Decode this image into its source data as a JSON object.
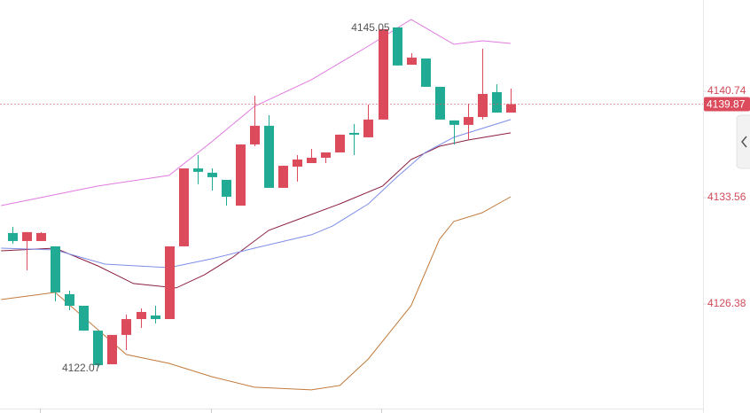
{
  "chart_data": {
    "type": "candlestick",
    "up_color": "#dc4b5c",
    "down_color": "#22ab94",
    "ylim": [
      4119.02,
      4146.9
    ],
    "yticks": [
      4126.38,
      4133.56,
      4140.74
    ],
    "last_price": 4139.87,
    "high_label": 4145.05,
    "low_label": 4122.07,
    "open": [
      4131.17,
      4130.63,
      4130.63,
      4130.27,
      4127.04,
      4126.26,
      4124.58,
      4122.31,
      4124.29,
      4125.36,
      4125.6,
      4125.36,
      4130.27,
      4135.53,
      4135.24,
      4134.76,
      4133.02,
      4137.15,
      4138.41,
      4134.22,
      4135.65,
      4135.89,
      4136.25,
      4136.61,
      4137.93,
      4137.63,
      4138.83,
      4145.05,
      4142.53,
      4142.95,
      4141.04,
      4138.77,
      4138.47,
      4139.0,
      4140.68,
      4139.3
    ],
    "high": [
      4131.59,
      4131.23,
      4131.23,
      4130.27,
      4127.28,
      4126.26,
      4124.58,
      4124.29,
      4125.66,
      4126.08,
      4126.26,
      4130.27,
      4135.53,
      4136.43,
      4135.53,
      4134.76,
      4137.15,
      4140.44,
      4139.12,
      4135.71,
      4136.43,
      4136.85,
      4136.61,
      4137.81,
      4138.53,
      4139.84,
      4144.93,
      4145.05,
      4143.31,
      4142.95,
      4141.04,
      4138.77,
      4139.9,
      4143.61,
      4141.22,
      4140.92
    ],
    "low": [
      4130.45,
      4128.65,
      4130.63,
      4126.56,
      4125.96,
      4124.58,
      4122.07,
      4122.31,
      4123.27,
      4124.76,
      4125.06,
      4125.36,
      4130.27,
      4134.46,
      4134.04,
      4133.02,
      4133.02,
      4137.03,
      4134.22,
      4134.22,
      4134.64,
      4135.89,
      4135.89,
      4136.61,
      4136.43,
      4137.63,
      4138.83,
      4142.48,
      4142.53,
      4141.04,
      4138.83,
      4137.15,
      4137.45,
      4138.83,
      4139.3,
      4139.3
    ],
    "close": [
      4130.63,
      4131.23,
      4131.17,
      4127.16,
      4126.26,
      4124.58,
      4122.25,
      4124.29,
      4125.36,
      4125.84,
      4125.36,
      4130.27,
      4135.53,
      4135.3,
      4134.94,
      4133.62,
      4137.15,
      4138.41,
      4134.22,
      4135.71,
      4136.13,
      4136.25,
      4136.61,
      4137.81,
      4137.81,
      4138.83,
      4144.93,
      4142.48,
      4143.01,
      4141.04,
      4138.83,
      4138.47,
      4139.0,
      4140.56,
      4139.3,
      4139.87
    ],
    "lines": [
      {
        "color": "#e07be0",
        "x": [
          -0.8,
          6,
          11,
          14,
          17,
          21,
          25,
          28,
          31,
          33,
          35
        ],
        "values": [
          4133.02,
          4134.34,
          4135.06,
          4137.33,
          4139.72,
          4141.52,
          4143.79,
          4145.59,
          4143.91,
          4144.15,
          4143.97
        ]
      },
      {
        "color": "#c27a3c",
        "x": [
          -0.8,
          3,
          8,
          11,
          14,
          17,
          21,
          23,
          25,
          28,
          30,
          31,
          33,
          35
        ],
        "values": [
          4126.68,
          4127.16,
          4122.97,
          4122.37,
          4121.47,
          4120.76,
          4120.58,
          4120.88,
          4122.67,
          4126.26,
          4130.75,
          4131.95,
          4132.54,
          4133.62
        ]
      },
      {
        "color": "#8b1f3f",
        "x": [
          -0.8,
          3,
          6,
          8.5,
          11.5,
          13.5,
          15.5,
          18,
          20.5,
          23,
          26,
          28,
          30,
          32,
          35
        ],
        "values": [
          4129.97,
          4130.15,
          4128.95,
          4127.76,
          4127.46,
          4128.36,
          4129.55,
          4131.35,
          4132.24,
          4133.14,
          4134.34,
          4136.13,
          4137.03,
          4137.45,
          4137.93
        ]
      },
      {
        "color": "#7d8ee8",
        "x": [
          -0.8,
          3,
          6.5,
          11,
          14,
          17,
          21,
          22.5,
          25,
          27,
          29,
          31,
          33,
          35
        ],
        "values": [
          4130.15,
          4130.03,
          4129.07,
          4128.83,
          4129.43,
          4130.15,
          4131.05,
          4131.65,
          4133.14,
          4134.94,
          4136.61,
          4137.63,
          4138.23,
          4138.83
        ]
      }
    ]
  }
}
